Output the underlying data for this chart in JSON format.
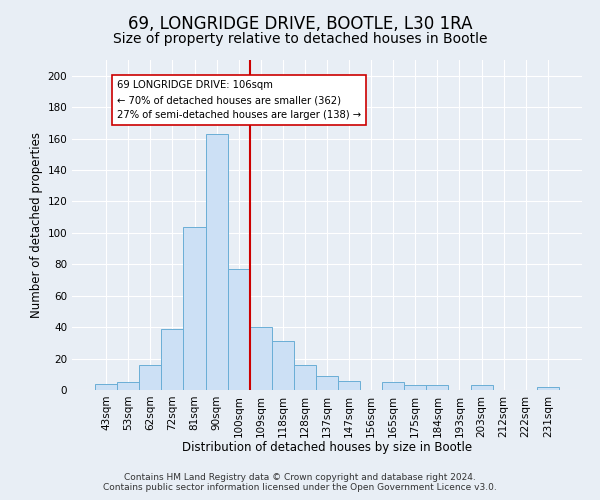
{
  "title": "69, LONGRIDGE DRIVE, BOOTLE, L30 1RA",
  "subtitle": "Size of property relative to detached houses in Bootle",
  "xlabel": "Distribution of detached houses by size in Bootle",
  "ylabel": "Number of detached properties",
  "bar_labels": [
    "43sqm",
    "53sqm",
    "62sqm",
    "72sqm",
    "81sqm",
    "90sqm",
    "100sqm",
    "109sqm",
    "118sqm",
    "128sqm",
    "137sqm",
    "147sqm",
    "156sqm",
    "165sqm",
    "175sqm",
    "184sqm",
    "193sqm",
    "203sqm",
    "212sqm",
    "222sqm",
    "231sqm"
  ],
  "bar_heights": [
    4,
    5,
    16,
    39,
    104,
    163,
    77,
    40,
    31,
    16,
    9,
    6,
    0,
    5,
    3,
    3,
    0,
    3,
    0,
    0,
    2
  ],
  "bar_color": "#cce0f5",
  "bar_edge_color": "#6aaed6",
  "vline_color": "#cc0000",
  "annotation_line1": "69 LONGRIDGE DRIVE: 106sqm",
  "annotation_line2": "← 70% of detached houses are smaller (362)",
  "annotation_line3": "27% of semi-detached houses are larger (138) →",
  "annotation_box_color": "#ffffff",
  "annotation_box_edge": "#cc0000",
  "ylim": [
    0,
    210
  ],
  "yticks": [
    0,
    20,
    40,
    60,
    80,
    100,
    120,
    140,
    160,
    180,
    200
  ],
  "footer": "Contains HM Land Registry data © Crown copyright and database right 2024.\nContains public sector information licensed under the Open Government Licence v3.0.",
  "background_color": "#e8eef5",
  "title_fontsize": 12,
  "subtitle_fontsize": 10,
  "axis_label_fontsize": 8.5,
  "tick_fontsize": 7.5,
  "footer_fontsize": 6.5
}
